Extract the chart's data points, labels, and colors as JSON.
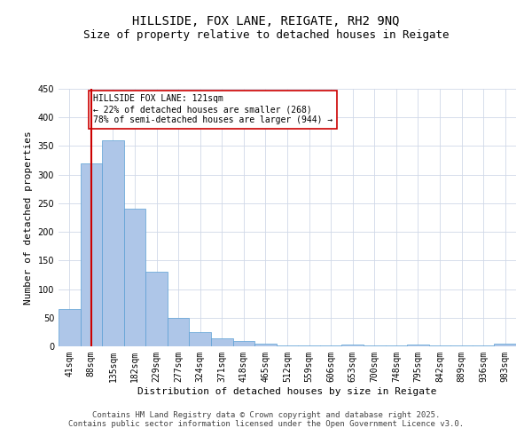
{
  "title1": "HILLSIDE, FOX LANE, REIGATE, RH2 9NQ",
  "title2": "Size of property relative to detached houses in Reigate",
  "xlabel": "Distribution of detached houses by size in Reigate",
  "ylabel": "Number of detached properties",
  "categories": [
    "41sqm",
    "88sqm",
    "135sqm",
    "182sqm",
    "229sqm",
    "277sqm",
    "324sqm",
    "371sqm",
    "418sqm",
    "465sqm",
    "512sqm",
    "559sqm",
    "606sqm",
    "653sqm",
    "700sqm",
    "748sqm",
    "795sqm",
    "842sqm",
    "889sqm",
    "936sqm",
    "983sqm"
  ],
  "values": [
    65,
    320,
    360,
    240,
    130,
    50,
    25,
    14,
    9,
    4,
    2,
    1,
    1,
    3,
    1,
    1,
    3,
    1,
    1,
    1,
    4
  ],
  "bar_color": "#aec6e8",
  "bar_edge_color": "#5a9fd4",
  "vline_x": 1.0,
  "vline_color": "#cc0000",
  "annotation_line1": "HILLSIDE FOX LANE: 121sqm",
  "annotation_line2": "← 22% of detached houses are smaller (268)",
  "annotation_line3": "78% of semi-detached houses are larger (944) →",
  "annotation_box_color": "#ffffff",
  "annotation_box_edge": "#cc0000",
  "ylim": [
    0,
    450
  ],
  "yticks": [
    0,
    50,
    100,
    150,
    200,
    250,
    300,
    350,
    400,
    450
  ],
  "background_color": "#ffffff",
  "grid_color": "#d0d8e8",
  "footer1": "Contains HM Land Registry data © Crown copyright and database right 2025.",
  "footer2": "Contains public sector information licensed under the Open Government Licence v3.0.",
  "title_fontsize": 10,
  "subtitle_fontsize": 9,
  "axis_label_fontsize": 8,
  "tick_fontsize": 7,
  "annotation_fontsize": 7,
  "footer_fontsize": 6.5
}
